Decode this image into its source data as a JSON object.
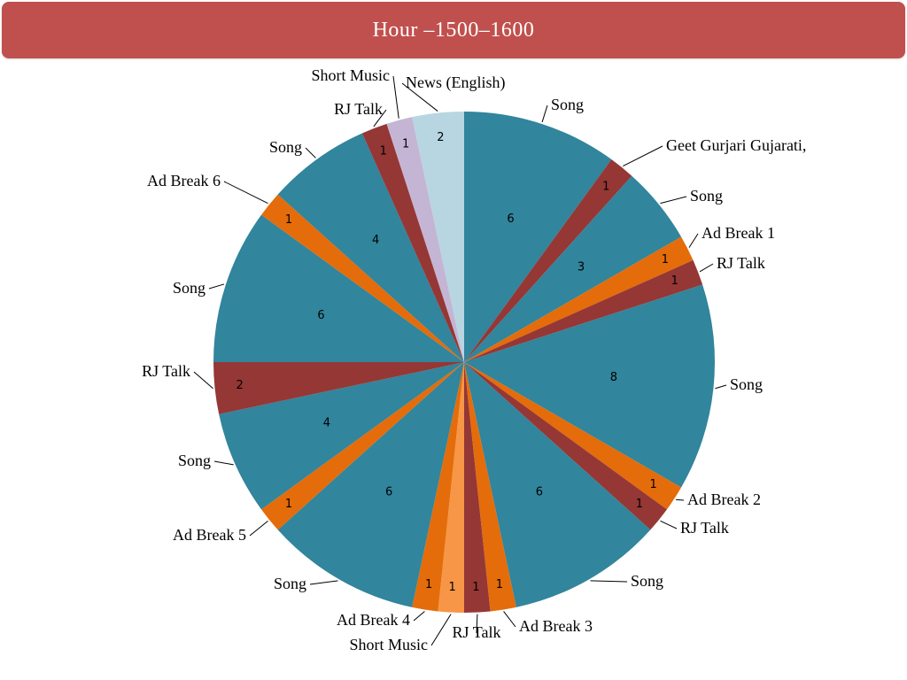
{
  "chart_data": {
    "type": "pie",
    "title": "Hour –1500–1600",
    "slices": [
      {
        "label": "Song",
        "value": 6,
        "color": "#31859c"
      },
      {
        "label": "Geet Gurjari Gujarati,",
        "value": 1,
        "color": "#953735"
      },
      {
        "label": "Song",
        "value": 3,
        "color": "#31859c"
      },
      {
        "label": "Ad Break 1",
        "value": 1,
        "color": "#e46c0a"
      },
      {
        "label": "RJ Talk",
        "value": 1,
        "color": "#953735"
      },
      {
        "label": "Song",
        "value": 8,
        "color": "#31859c"
      },
      {
        "label": "Ad Break 2",
        "value": 1,
        "color": "#e46c0a"
      },
      {
        "label": "RJ Talk",
        "value": 1,
        "color": "#953735"
      },
      {
        "label": "Song",
        "value": 6,
        "color": "#31859c"
      },
      {
        "label": "Ad Break 3",
        "value": 1,
        "color": "#e46c0a"
      },
      {
        "label": "RJ Talk",
        "value": 1,
        "color": "#953735"
      },
      {
        "label": "Short Music",
        "value": 1,
        "color": "#f79646"
      },
      {
        "label": "Ad Break 4",
        "value": 1,
        "color": "#e46c0a"
      },
      {
        "label": "Song",
        "value": 6,
        "color": "#31859c"
      },
      {
        "label": "Ad Break 5",
        "value": 1,
        "color": "#e46c0a"
      },
      {
        "label": "Song",
        "value": 4,
        "color": "#31859c"
      },
      {
        "label": "RJ Talk",
        "value": 2,
        "color": "#953735"
      },
      {
        "label": "Song",
        "value": 6,
        "color": "#31859c"
      },
      {
        "label": "Ad Break 6",
        "value": 1,
        "color": "#e46c0a"
      },
      {
        "label": "Song",
        "value": 4,
        "color": "#31859c"
      },
      {
        "label": "RJ Talk",
        "value": 1,
        "color": "#953735"
      },
      {
        "label": "Short Music",
        "value": 1,
        "color": "#c4b5d4"
      },
      {
        "label": "News (English)",
        "value": 2,
        "color": "#b7d6e2"
      }
    ],
    "legend": "none",
    "data_labels": "inside"
  }
}
